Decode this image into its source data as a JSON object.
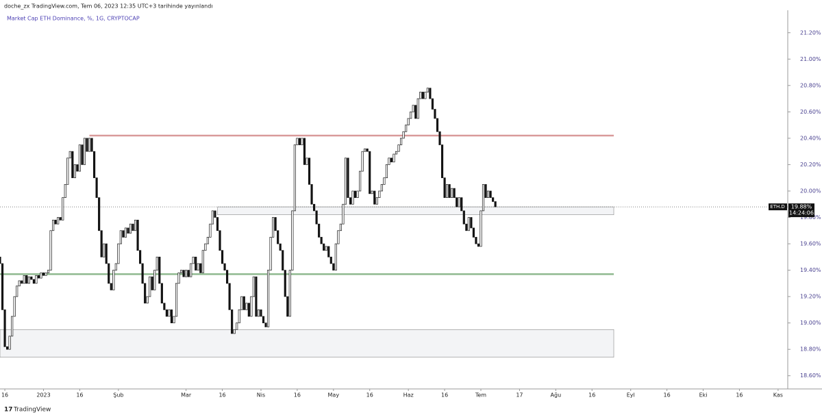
{
  "header": {
    "published": "doche_zx TradingView.com, Tem 06, 2023 12:35 UTC+3 tarihinde yayınlandı",
    "footer": "TradingView"
  },
  "chart_data": {
    "type": "candlestick",
    "title": "Market Cap ETH Dominance, %, 1G, CRYPTOCAP",
    "xlim": [
      -2,
      324
    ],
    "ylim": [
      18.5,
      21.37
    ],
    "xticks": [
      {
        "value": 0,
        "label": "16"
      },
      {
        "value": 16,
        "label": "2023"
      },
      {
        "value": 31,
        "label": "16"
      },
      {
        "value": 47,
        "label": "Şub"
      },
      {
        "value": 75,
        "label": "Mar"
      },
      {
        "value": 90,
        "label": "16"
      },
      {
        "value": 106,
        "label": "Nis"
      },
      {
        "value": 121,
        "label": "16"
      },
      {
        "value": 136,
        "label": "May"
      },
      {
        "value": 151,
        "label": "16"
      },
      {
        "value": 167,
        "label": "Haz"
      },
      {
        "value": 182,
        "label": "16"
      },
      {
        "value": 197,
        "label": "Tem"
      },
      {
        "value": 213,
        "label": "17"
      },
      {
        "value": 228,
        "label": "Ağu"
      },
      {
        "value": 243,
        "label": "16"
      },
      {
        "value": 259,
        "label": "Eyl"
      },
      {
        "value": 274,
        "label": "16"
      },
      {
        "value": 289,
        "label": "Eki"
      },
      {
        "value": 304,
        "label": "16"
      },
      {
        "value": 320,
        "label": "Kas"
      }
    ],
    "yticks": [
      {
        "value": 18.6,
        "label": "18.60%"
      },
      {
        "value": 18.8,
        "label": "18.80%"
      },
      {
        "value": 19.0,
        "label": "19.00%"
      },
      {
        "value": 19.2,
        "label": "19.20%"
      },
      {
        "value": 19.4,
        "label": "19.40%"
      },
      {
        "value": 19.6,
        "label": "19.60%"
      },
      {
        "value": 19.8,
        "label": "19.80%"
      },
      {
        "value": 20.0,
        "label": "20.00%"
      },
      {
        "value": 20.2,
        "label": "20.20%"
      },
      {
        "value": 20.4,
        "label": "20.40%"
      },
      {
        "value": 20.6,
        "label": "20.60%"
      },
      {
        "value": 20.8,
        "label": "20.80%"
      },
      {
        "value": 21.0,
        "label": "21.00%"
      },
      {
        "value": 21.2,
        "label": "21.20%"
      }
    ],
    "up_color": "#ffffff",
    "down_color": "#131313",
    "x": [
      -2,
      -1,
      0,
      1,
      2,
      3,
      4,
      5,
      6,
      7,
      8,
      9,
      10,
      11,
      12,
      13,
      14,
      15,
      16,
      17,
      18,
      19,
      20,
      21,
      22,
      23,
      24,
      25,
      26,
      27,
      28,
      29,
      30,
      31,
      32,
      33,
      34,
      35,
      36,
      37,
      38,
      39,
      40,
      41,
      42,
      43,
      44,
      45,
      46,
      47,
      48,
      49,
      50,
      51,
      52,
      53,
      54,
      55,
      56,
      57,
      58,
      59,
      60,
      61,
      62,
      63,
      64,
      65,
      66,
      67,
      68,
      69,
      70,
      71,
      72,
      73,
      74,
      75,
      76,
      77,
      78,
      79,
      80,
      81,
      82,
      83,
      84,
      85,
      86,
      87,
      88,
      89,
      90,
      91,
      92,
      93,
      94,
      95,
      96,
      97,
      98,
      99,
      100,
      101,
      102,
      103,
      104,
      105,
      106,
      107,
      108,
      109,
      110,
      111,
      112,
      113,
      114,
      115,
      116,
      117,
      118,
      119,
      120,
      121,
      122,
      123,
      124,
      125,
      126,
      127,
      128,
      129,
      130,
      131,
      132,
      133,
      134,
      135,
      136,
      137,
      138,
      139,
      140,
      141,
      142,
      143,
      144,
      145,
      146,
      147,
      148,
      149,
      150,
      151,
      152,
      153,
      154,
      155,
      156,
      157,
      158,
      159,
      160,
      161,
      162,
      163,
      164,
      165,
      166,
      167,
      168,
      169,
      170,
      171,
      172,
      173,
      174,
      175,
      176,
      177,
      178,
      179,
      180,
      181,
      182,
      183,
      184,
      185,
      186,
      187,
      188,
      189,
      190,
      191,
      192,
      193,
      194,
      195,
      196,
      197,
      198,
      199,
      200,
      201,
      202,
      203
    ],
    "open": [
      19.5,
      19.45,
      19.1,
      18.82,
      18.8,
      18.9,
      19.05,
      19.2,
      19.28,
      19.32,
      19.3,
      19.36,
      19.3,
      19.35,
      19.33,
      19.3,
      19.36,
      19.34,
      19.38,
      19.36,
      19.38,
      19.4,
      19.7,
      19.78,
      19.75,
      19.8,
      19.78,
      19.95,
      20.05,
      20.25,
      20.3,
      20.1,
      20.2,
      20.15,
      20.35,
      20.2,
      20.4,
      20.3,
      20.4,
      20.3,
      20.1,
      19.95,
      19.7,
      19.5,
      19.6,
      19.45,
      19.3,
      19.25,
      19.4,
      19.45,
      19.6,
      19.7,
      19.65,
      19.72,
      19.68,
      19.75,
      19.7,
      19.78,
      19.55,
      19.45,
      19.3,
      19.15,
      19.2,
      19.35,
      19.25,
      19.4,
      19.5,
      19.3,
      19.15,
      19.1,
      19.05,
      19.1,
      19.0,
      19.05,
      19.3,
      19.38,
      19.4,
      19.35,
      19.4,
      19.35,
      19.45,
      19.5,
      19.4,
      19.45,
      19.38,
      19.55,
      19.6,
      19.65,
      19.75,
      19.85,
      19.8,
      19.7,
      19.55,
      19.45,
      19.4,
      19.3,
      19.1,
      18.92,
      18.95,
      19.0,
      19.1,
      19.2,
      19.1,
      19.15,
      19.05,
      19.2,
      19.35,
      19.05,
      19.1,
      19.05,
      19.0,
      18.97,
      19.4,
      19.65,
      19.8,
      19.7,
      19.6,
      19.55,
      19.4,
      19.2,
      19.05,
      19.4,
      19.85,
      20.35,
      20.4,
      20.35,
      20.4,
      20.2,
      20.25,
      20.05,
      19.9,
      19.85,
      19.75,
      19.65,
      19.6,
      19.55,
      19.58,
      19.5,
      19.45,
      19.4,
      19.6,
      19.7,
      19.75,
      19.9,
      20.25,
      19.95,
      19.9,
      20.0,
      19.95,
      20.0,
      20.15,
      20.3,
      20.32,
      20.3,
      19.98,
      20.0,
      19.9,
      19.95,
      20.0,
      20.05,
      20.1,
      20.2,
      20.25,
      20.22,
      20.28,
      20.3,
      20.35,
      20.4,
      20.45,
      20.5,
      20.55,
      20.6,
      20.65,
      20.55,
      20.7,
      20.75,
      20.7,
      20.75,
      20.78,
      20.7,
      20.62,
      20.55,
      20.45,
      20.35,
      20.1,
      19.95,
      20.05,
      19.95,
      20.02,
      19.95,
      19.88,
      19.95,
      19.85,
      19.75,
      19.7,
      19.8,
      19.72,
      19.65,
      19.6,
      19.58,
      19.85,
      20.05,
      19.95,
      20.0,
      19.95,
      19.92
    ],
    "close": [
      19.45,
      19.1,
      18.82,
      18.8,
      18.9,
      19.05,
      19.2,
      19.28,
      19.32,
      19.3,
      19.36,
      19.3,
      19.35,
      19.33,
      19.3,
      19.36,
      19.34,
      19.38,
      19.36,
      19.38,
      19.4,
      19.7,
      19.78,
      19.75,
      19.8,
      19.78,
      19.95,
      20.05,
      20.25,
      20.3,
      20.1,
      20.2,
      20.15,
      20.35,
      20.2,
      20.4,
      20.3,
      20.4,
      20.3,
      20.1,
      19.95,
      19.7,
      19.5,
      19.6,
      19.45,
      19.3,
      19.25,
      19.4,
      19.45,
      19.6,
      19.7,
      19.65,
      19.72,
      19.68,
      19.75,
      19.7,
      19.78,
      19.55,
      19.45,
      19.3,
      19.15,
      19.2,
      19.35,
      19.25,
      19.4,
      19.5,
      19.3,
      19.15,
      19.1,
      19.05,
      19.1,
      19.0,
      19.05,
      19.3,
      19.38,
      19.4,
      19.35,
      19.4,
      19.35,
      19.45,
      19.5,
      19.4,
      19.45,
      19.38,
      19.55,
      19.6,
      19.65,
      19.75,
      19.85,
      19.8,
      19.7,
      19.55,
      19.45,
      19.4,
      19.3,
      19.1,
      18.92,
      18.95,
      19.0,
      19.1,
      19.2,
      19.1,
      19.15,
      19.05,
      19.2,
      19.35,
      19.05,
      19.1,
      19.05,
      19.0,
      18.97,
      19.4,
      19.65,
      19.8,
      19.7,
      19.6,
      19.55,
      19.4,
      19.2,
      19.05,
      19.4,
      19.85,
      20.35,
      20.4,
      20.35,
      20.4,
      20.2,
      20.25,
      20.05,
      19.9,
      19.85,
      19.75,
      19.65,
      19.6,
      19.55,
      19.58,
      19.5,
      19.45,
      19.4,
      19.6,
      19.7,
      19.75,
      19.9,
      20.25,
      19.95,
      19.9,
      20.0,
      19.95,
      20.0,
      20.15,
      20.3,
      20.32,
      20.3,
      19.98,
      20.0,
      19.9,
      19.95,
      20.0,
      20.05,
      20.1,
      20.2,
      20.25,
      20.22,
      20.28,
      20.3,
      20.35,
      20.4,
      20.45,
      20.5,
      20.55,
      20.6,
      20.65,
      20.55,
      20.7,
      20.75,
      20.7,
      20.75,
      20.78,
      20.7,
      20.62,
      20.55,
      20.45,
      20.35,
      20.1,
      19.95,
      20.05,
      19.95,
      20.02,
      19.95,
      19.88,
      19.95,
      19.85,
      19.75,
      19.7,
      19.8,
      19.72,
      19.65,
      19.6,
      19.58,
      19.85,
      20.05,
      19.95,
      20.0,
      19.95,
      19.92,
      19.88
    ],
    "levels": [
      {
        "value": 20.42,
        "start": 35,
        "end": 252,
        "color": "#d99a9a"
      },
      {
        "value": 19.37,
        "start": -2,
        "end": 252,
        "color": "#8fb98f"
      }
    ],
    "zones": [
      {
        "from": 19.82,
        "to": 19.88,
        "start": 88,
        "end": 252
      },
      {
        "from": 18.74,
        "to": 18.95,
        "start": -2,
        "end": 252
      }
    ],
    "last_price": {
      "symbol": "ETH.D",
      "value": 19.88,
      "label": "19.88%",
      "countdown": "14:24:06"
    }
  }
}
